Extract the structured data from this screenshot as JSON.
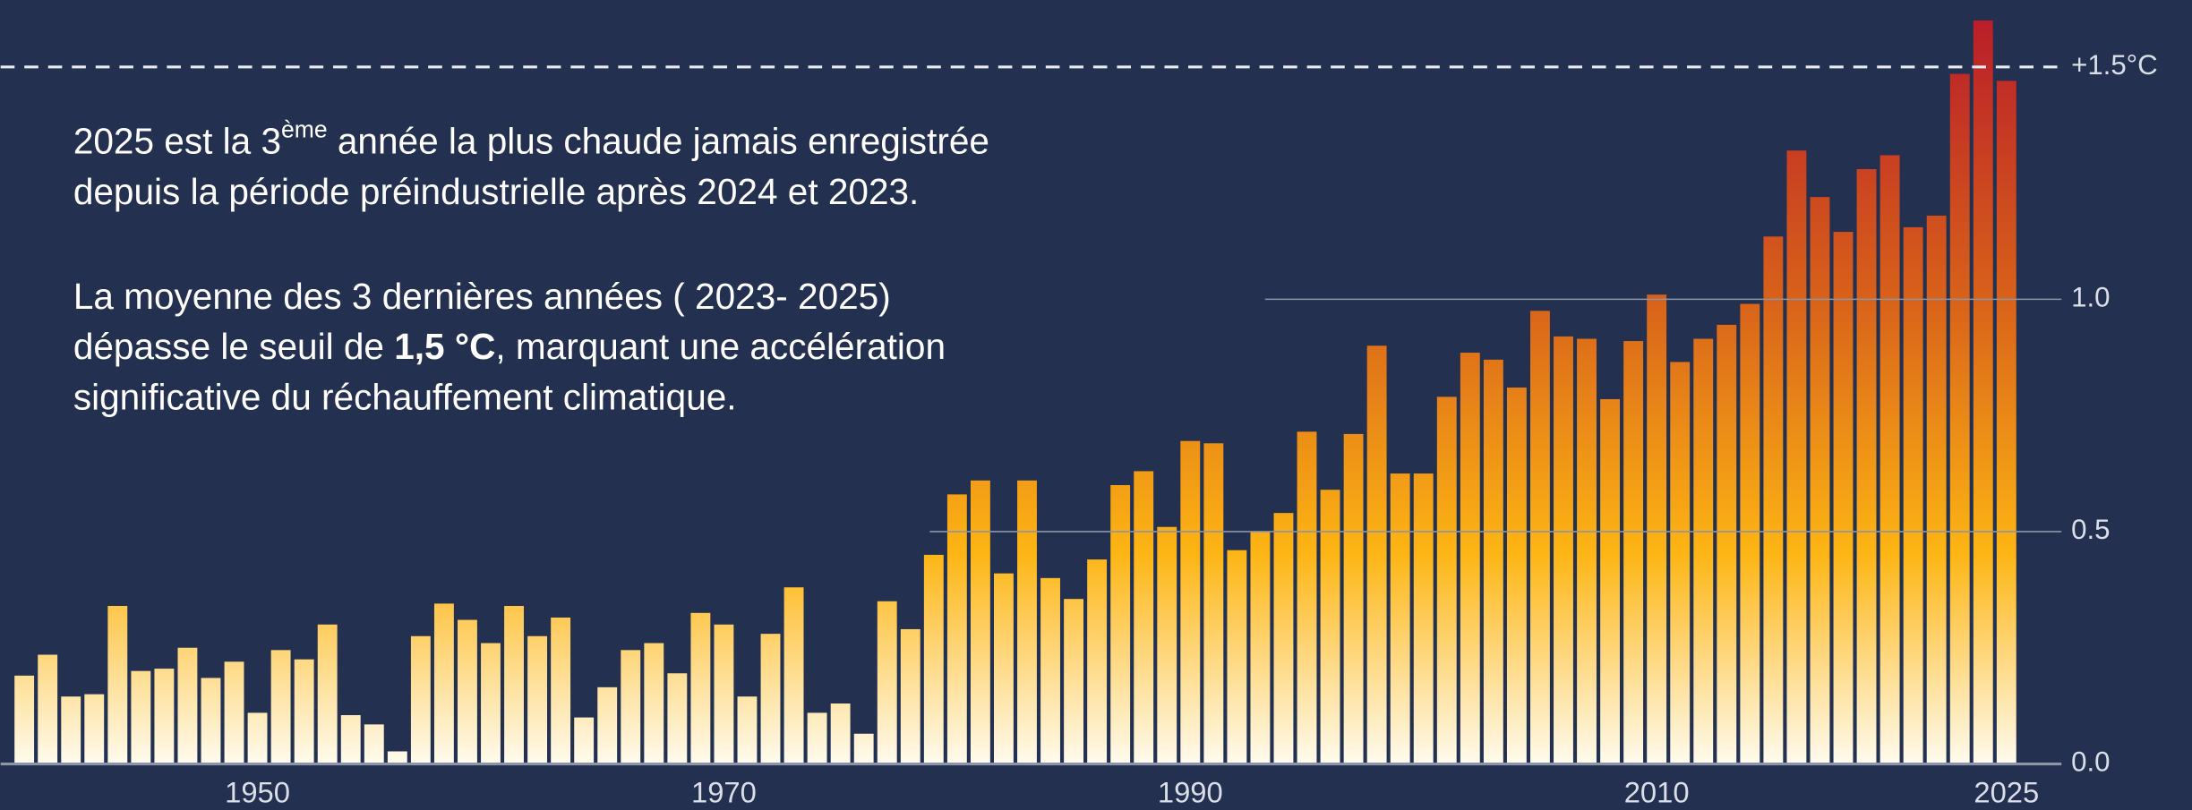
{
  "chart_data": {
    "type": "bar",
    "annotations": [
      [
        "2025 est la 3",
        "ème",
        " année la plus chaude jamais enregistrée"
      ],
      [
        "depuis la période préindustrielle après 2024 et 2023."
      ],
      [
        "La moyenne des 3 dernières années ( 2023- 2025)"
      ],
      [
        "dépasse le seuil de ",
        "1,5 °C",
        ", marquant une accélération"
      ],
      [
        "significative du réchauffement climatique."
      ]
    ],
    "x": [
      1940,
      1941,
      1942,
      1943,
      1944,
      1945,
      1946,
      1947,
      1948,
      1949,
      1950,
      1951,
      1952,
      1953,
      1954,
      1955,
      1956,
      1957,
      1958,
      1959,
      1960,
      1961,
      1962,
      1963,
      1964,
      1965,
      1966,
      1967,
      1968,
      1969,
      1970,
      1971,
      1972,
      1973,
      1974,
      1975,
      1976,
      1977,
      1978,
      1979,
      1980,
      1981,
      1982,
      1983,
      1984,
      1985,
      1986,
      1987,
      1988,
      1989,
      1990,
      1991,
      1992,
      1993,
      1994,
      1995,
      1996,
      1997,
      1998,
      1999,
      2000,
      2001,
      2002,
      2003,
      2004,
      2005,
      2006,
      2007,
      2008,
      2009,
      2010,
      2011,
      2012,
      2013,
      2014,
      2015,
      2016,
      2017,
      2018,
      2019,
      2020,
      2021,
      2022,
      2023,
      2024,
      2025
    ],
    "values": [
      0.19,
      0.235,
      0.145,
      0.15,
      0.34,
      0.2,
      0.205,
      0.25,
      0.185,
      0.22,
      0.11,
      0.245,
      0.225,
      0.3,
      0.105,
      0.085,
      0.027,
      0.275,
      0.345,
      0.31,
      0.26,
      0.34,
      0.275,
      0.315,
      0.1,
      0.165,
      0.245,
      0.26,
      0.195,
      0.325,
      0.3,
      0.145,
      0.28,
      0.38,
      0.11,
      0.13,
      0.065,
      0.35,
      0.29,
      0.45,
      0.58,
      0.61,
      0.41,
      0.61,
      0.4,
      0.355,
      0.44,
      0.6,
      0.63,
      0.51,
      0.695,
      0.69,
      0.46,
      0.5,
      0.54,
      0.715,
      0.59,
      0.71,
      0.9,
      0.625,
      0.625,
      0.79,
      0.885,
      0.87,
      0.81,
      0.975,
      0.92,
      0.915,
      0.785,
      0.91,
      1.01,
      0.865,
      0.915,
      0.945,
      0.99,
      1.135,
      1.32,
      1.22,
      1.145,
      1.28,
      1.31,
      1.155,
      1.18,
      1.485,
      1.6,
      1.47
    ],
    "color_scale": [
      "#fffbee",
      "#fdb514",
      "#d8611a",
      "#b81c2a"
    ],
    "xlim": [
      1939.5,
      2025.5
    ],
    "xticks": [
      1950,
      1970,
      1990,
      2010,
      2025
    ],
    "ylim": [
      0,
      1.62
    ],
    "yticks": [
      {
        "value": 0,
        "label": "0.0"
      },
      {
        "value": 0.5,
        "label": "0.5"
      },
      {
        "value": 1,
        "label": "1.0"
      },
      {
        "value": 1.5,
        "label": "+1.5°C"
      }
    ],
    "grid": true
  }
}
